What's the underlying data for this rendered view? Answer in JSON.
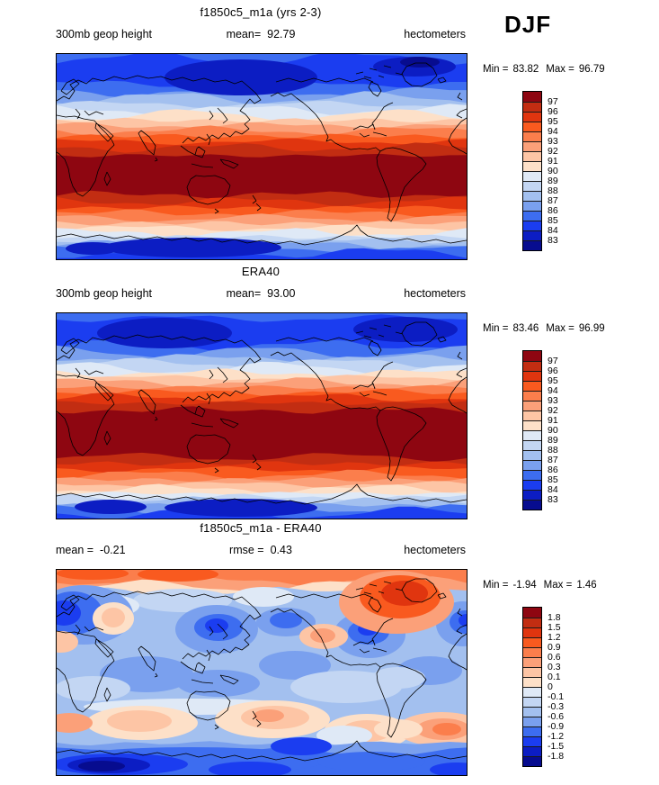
{
  "season_label": "DJF",
  "palette": [
    "#8E0611",
    "#C22D12",
    "#E0350F",
    "#F95A1F",
    "#FB7E4C",
    "#FBA079",
    "#FDC5A5",
    "#FDE0C8",
    "#DFE9F6",
    "#C3D6F3",
    "#A3C0EF",
    "#7AA0EE",
    "#3D6DF0",
    "#1B3DF0",
    "#0C1DC3",
    "#070C8F"
  ],
  "panels": [
    {
      "title": "f1850c5_m1a (yrs 2-3)",
      "header": {
        "left": {
          "label": "300mb geop height",
          "value": ""
        },
        "center": {
          "label": "mean=",
          "value": "92.79"
        },
        "right": {
          "label": "hectometers"
        }
      },
      "minmax": {
        "min_label": "Min =",
        "min_value": "83.82",
        "max_label": "Max =",
        "max_value": "96.79"
      },
      "colorbar_ticks": [
        "97",
        "96",
        "95",
        "94",
        "93",
        "92",
        "91",
        "90",
        "89",
        "88",
        "87",
        "86",
        "85",
        "84",
        "83"
      ]
    },
    {
      "title": "ERA40",
      "header": {
        "left": {
          "label": "300mb geop height",
          "value": ""
        },
        "center": {
          "label": "mean=",
          "value": "93.00"
        },
        "right": {
          "label": "hectometers"
        }
      },
      "minmax": {
        "min_label": "Min =",
        "min_value": "83.46",
        "max_label": "Max =",
        "max_value": "96.99"
      },
      "colorbar_ticks": [
        "97",
        "96",
        "95",
        "94",
        "93",
        "92",
        "91",
        "90",
        "89",
        "88",
        "87",
        "86",
        "85",
        "84",
        "83"
      ]
    },
    {
      "title": "f1850c5_m1a - ERA40",
      "header": {
        "left": {
          "label": "mean =",
          "value": "-0.21"
        },
        "center": {
          "label": "rmse =",
          "value": "0.43"
        },
        "right": {
          "label": "hectometers"
        }
      },
      "minmax": {
        "min_label": "Min =",
        "min_value": "-1.94",
        "max_label": "Max =",
        "max_value": "1.46"
      },
      "colorbar_ticks": [
        "1.8",
        "1.5",
        "1.2",
        "0.9",
        "0.6",
        "0.3",
        "0.1",
        "0",
        "-0.1",
        "-0.3",
        "-0.6",
        "-0.9",
        "-1.2",
        "-1.5",
        "-1.8"
      ]
    }
  ],
  "chart_data": [
    {
      "type": "heatmap",
      "subtype": "filled-contour-global-map",
      "title": "f1850c5_m1a (yrs 2-3)",
      "variable": "300mb geop height",
      "units": "hectometers",
      "season": "DJF",
      "stats": {
        "mean": 92.79,
        "min": 83.82,
        "max": 96.79
      },
      "contour_levels": [
        83,
        84,
        85,
        86,
        87,
        88,
        89,
        90,
        91,
        92,
        93,
        94,
        95,
        96,
        97
      ],
      "legend_position": "right",
      "projection": "cylindrical equidistant, Pacific-centered (180E), coastlines drawn",
      "spatial_pattern": "zonal bands: maximum (~97 hm, dark red) across tropics/subtropics; values decrease poleward; deepest minimum (~83 hm, dark blue) over winter Arctic; secondary minimum over Antarctic"
    },
    {
      "type": "heatmap",
      "subtype": "filled-contour-global-map",
      "title": "ERA40",
      "variable": "300mb geop height",
      "units": "hectometers",
      "season": "DJF",
      "stats": {
        "mean": 93.0,
        "min": 83.46,
        "max": 96.99
      },
      "contour_levels": [
        83,
        84,
        85,
        86,
        87,
        88,
        89,
        90,
        91,
        92,
        93,
        94,
        95,
        96,
        97
      ],
      "legend_position": "right",
      "projection": "cylindrical equidistant, Pacific-centered (180E), coastlines drawn",
      "spatial_pattern": "same zonal structure as model panel: tropical maximum ~97 hm, polar minima ~83 hm"
    },
    {
      "type": "heatmap",
      "subtype": "filled-contour-global-map-difference",
      "title": "f1850c5_m1a - ERA40",
      "variable": "300mb geop height difference",
      "units": "hectometers",
      "season": "DJF",
      "stats": {
        "mean": -0.21,
        "rmse": 0.43,
        "min": -1.94,
        "max": 1.46
      },
      "contour_levels": [
        -1.8,
        -1.5,
        -1.2,
        -0.9,
        -0.6,
        -0.3,
        -0.1,
        0,
        0.1,
        0.3,
        0.6,
        0.9,
        1.2,
        1.5,
        1.8
      ],
      "legend_position": "right",
      "projection": "cylindrical equidistant, Pacific-centered (180E), coastlines drawn",
      "spatial_pattern": "mostly weak negative (light blue); positive (orange/red) along Arctic rim with strongest +1.4 over Greenland/NE Canada; negative cells over N Europe, NE Asia/Japan and E North America; positive band in southern mid-latitudes near Australia/New Zealand and S Atlantic; strong negative (-1.9) over Antarctica"
    }
  ]
}
